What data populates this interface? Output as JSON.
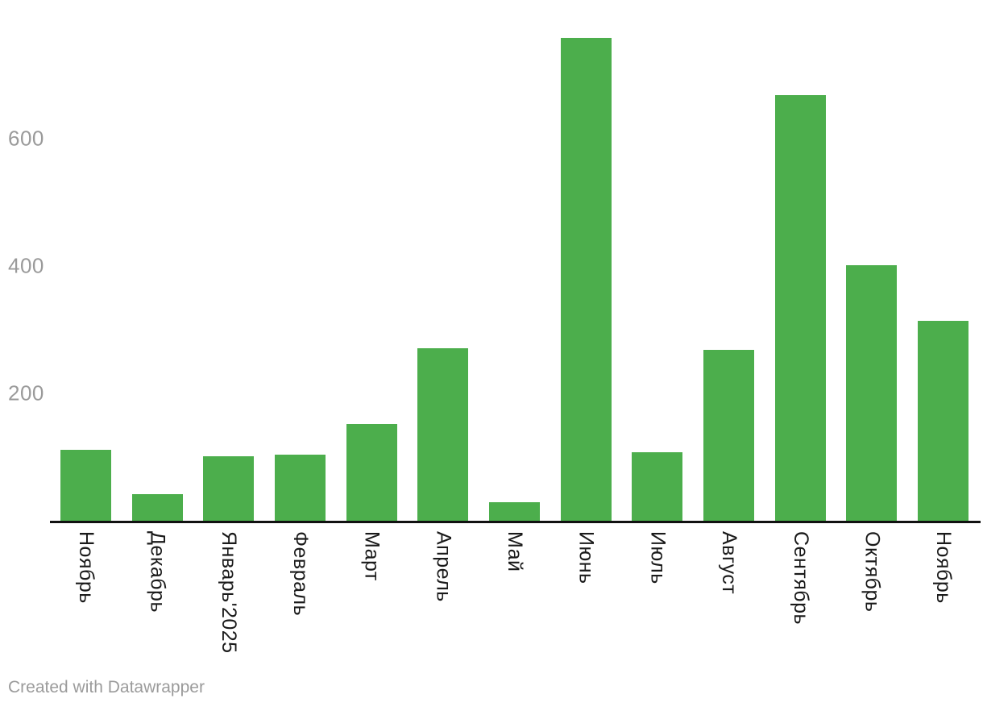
{
  "chart_data": {
    "type": "bar",
    "categories": [
      "Ноябрь",
      "Декабрь",
      "Январь'2025",
      "Февраль",
      "Март",
      "Апрель",
      "Май",
      "Июнь",
      "Июль",
      "Август",
      "Сентябрь",
      "Октябрь",
      "Ноябрь"
    ],
    "values": [
      111,
      42,
      101,
      104,
      152,
      271,
      29,
      758,
      108,
      268,
      668,
      401,
      314
    ],
    "title": "",
    "xlabel": "",
    "ylabel": "",
    "ylim": [
      0,
      780
    ],
    "yticks": [
      200,
      400,
      600
    ],
    "grid": false,
    "legend": false,
    "bar_color": "#4cae4c",
    "axis_color": "#111111",
    "ytick_label_color": "#9a9a9a",
    "xtick_label_color": "#1a1a1a"
  },
  "footer": {
    "credit_text": "Created with Datawrapper"
  }
}
